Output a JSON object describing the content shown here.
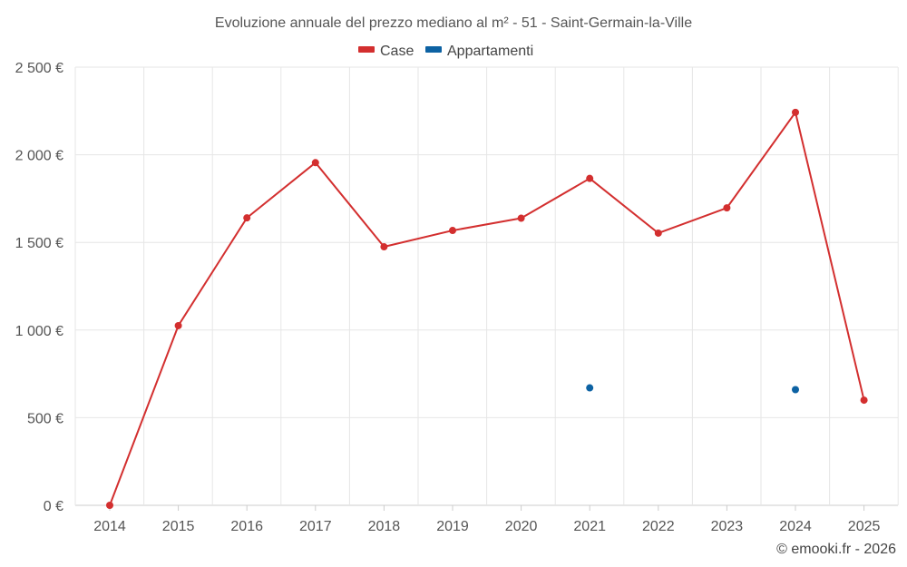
{
  "chart_data": {
    "type": "line",
    "title": "Evoluzione annuale del prezzo mediano al m² - 51 - Saint-Germain-la-Ville",
    "categories": [
      "2014",
      "2015",
      "2016",
      "2017",
      "2018",
      "2019",
      "2020",
      "2021",
      "2022",
      "2023",
      "2024",
      "2025"
    ],
    "y_ticks": [
      0,
      500,
      1000,
      1500,
      2000,
      2500
    ],
    "y_tick_labels": [
      "0 €",
      "500 €",
      "1 000 €",
      "1 500 €",
      "2 000 €",
      "2 500 €"
    ],
    "ylim": [
      0,
      2500
    ],
    "grid": true,
    "legend_position": "top-center",
    "series": [
      {
        "name": "Case",
        "color": "#d32f2f",
        "values": [
          0,
          1025,
          1640,
          1955,
          1475,
          1568,
          1638,
          1865,
          1553,
          1697,
          2242,
          600
        ],
        "line": true
      },
      {
        "name": "Appartamenti",
        "color": "#0d62a3",
        "values": [
          null,
          null,
          null,
          null,
          null,
          null,
          null,
          670,
          null,
          null,
          660,
          null
        ],
        "line": false
      }
    ]
  },
  "credit": "© emooki.fr - 2026"
}
